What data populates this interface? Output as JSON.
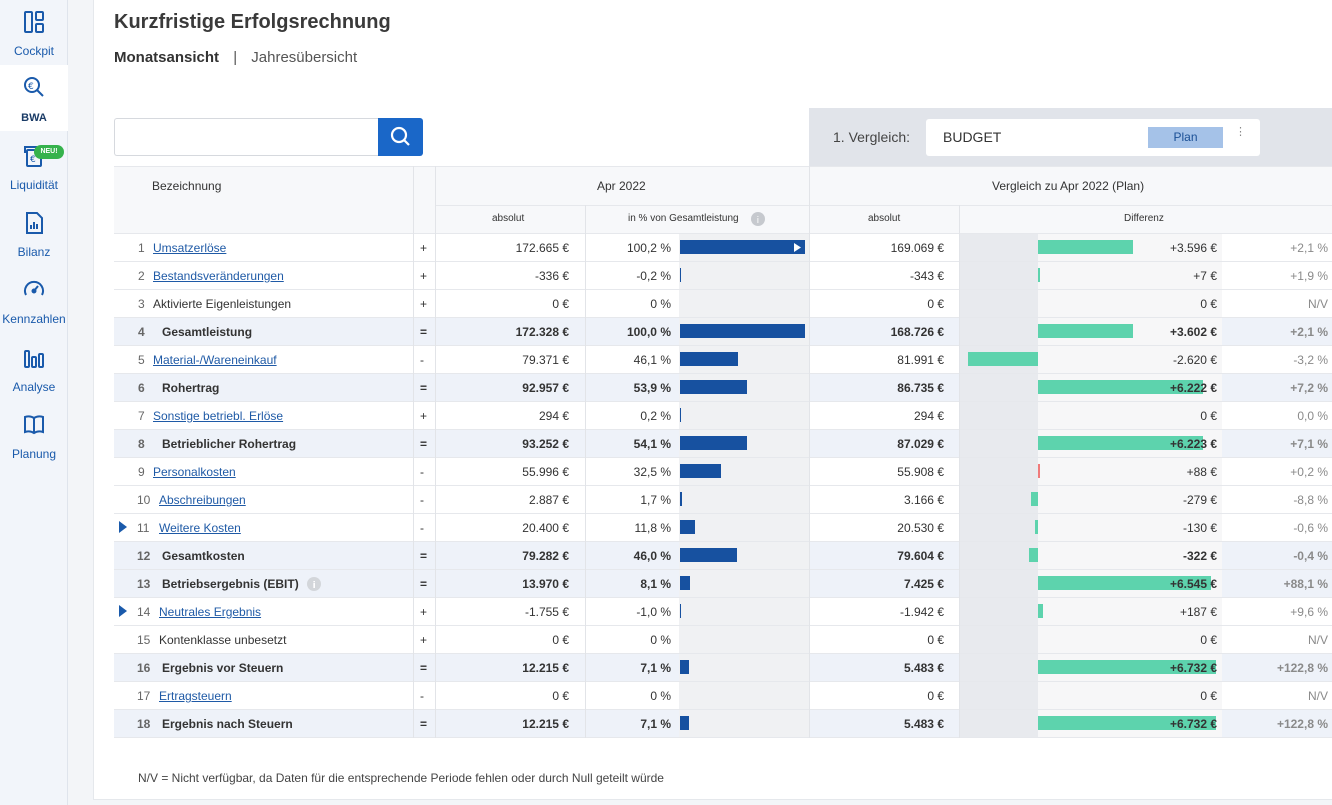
{
  "nav": [
    {
      "id": "cockpit",
      "label": "Cockpit",
      "icon": "dashboard-icon"
    },
    {
      "id": "bwa",
      "label": "BWA",
      "icon": "euro-search-icon",
      "active": true
    },
    {
      "id": "liquiditaet",
      "label": "Liquidität",
      "icon": "wallet-icon",
      "badge": "NEU!"
    },
    {
      "id": "bilanz",
      "label": "Bilanz",
      "icon": "document-chart-icon"
    },
    {
      "id": "kennzahlen",
      "label": "Kennzahlen",
      "icon": "gauge-icon"
    },
    {
      "id": "analyse",
      "label": "Analyse",
      "icon": "bar-chart-icon"
    },
    {
      "id": "planung",
      "label": "Planung",
      "icon": "book-icon"
    }
  ],
  "page": {
    "title": "Kurzfristige Erfolgsrechnung",
    "tab_month": "Monatsansicht",
    "tab_sep": "|",
    "tab_year": "Jahresübersicht"
  },
  "search": {
    "placeholder": "",
    "value": ""
  },
  "compare": {
    "label": "1. Vergleich:",
    "value": "BUDGET",
    "badge": "Plan",
    "more": "⋮"
  },
  "table": {
    "h_name": "Bezeichnung",
    "h_period": "Apr 2022",
    "h_compare": "Vergleich zu Apr 2022 (Plan)",
    "h_abs": "absolut",
    "h_pct": "in % von Gesamtleistung",
    "h_abs2": "absolut",
    "h_diff": "Differenz",
    "rows": [
      {
        "no": "1",
        "name": "Umsatzerlöse",
        "link": true,
        "op": "+",
        "abs": "172.665 €",
        "pct": "100,2 %",
        "share": 100.2,
        "plan": "169.069 €",
        "diff": "+3.596 €",
        "diffv": 3596,
        "dpct": "+2,1 %"
      },
      {
        "no": "2",
        "name": "Bestandsveränderungen",
        "link": true,
        "op": "+",
        "abs": "-336 €",
        "pct": "-0,2 %",
        "share": 0.2,
        "plan": "-343 €",
        "diff": "+7 €",
        "diffv": 7,
        "dpct": "+1,9 %"
      },
      {
        "no": "3",
        "name": "Aktivierte Eigenleistungen",
        "link": false,
        "op": "+",
        "abs": "0 €",
        "pct": "0 %",
        "share": 0,
        "plan": "0 €",
        "diff": "0 €",
        "diffv": 0,
        "dpct": "N/V"
      },
      {
        "no": "4",
        "name": "Gesamtleistung",
        "bold": true,
        "op": "=",
        "abs": "172.328 €",
        "pct": "100,0 %",
        "share": 100,
        "plan": "168.726 €",
        "diff": "+3.602 €",
        "diffv": 3602,
        "dpct": "+2,1 %"
      },
      {
        "no": "5",
        "name": "Material-/Wareneinkauf",
        "link": true,
        "op": "-",
        "abs": "79.371 €",
        "pct": "46,1 %",
        "share": 46.1,
        "plan": "81.991 €",
        "diff": "-2.620 €",
        "diffv": -2620,
        "dpct": "-3,2 %"
      },
      {
        "no": "6",
        "name": "Rohertrag",
        "bold": true,
        "op": "=",
        "abs": "92.957 €",
        "pct": "53,9 %",
        "share": 53.9,
        "plan": "86.735 €",
        "diff": "+6.222 €",
        "diffv": 6222,
        "dpct": "+7,2 %"
      },
      {
        "no": "7",
        "name": "Sonstige betriebl. Erlöse",
        "link": true,
        "op": "+",
        "abs": "294 €",
        "pct": "0,2 %",
        "share": 0.2,
        "plan": "294 €",
        "diff": "0 €",
        "diffv": 0,
        "dpct": "0,0 %"
      },
      {
        "no": "8",
        "name": "Betrieblicher Rohertrag",
        "bold": true,
        "op": "=",
        "abs": "93.252 €",
        "pct": "54,1 %",
        "share": 54.1,
        "plan": "87.029 €",
        "diff": "+6.223 €",
        "diffv": 6223,
        "dpct": "+7,1 %"
      },
      {
        "no": "9",
        "name": "Personalkosten",
        "link": true,
        "op": "-",
        "abs": "55.996 €",
        "pct": "32,5 %",
        "share": 32.5,
        "plan": "55.908 €",
        "diff": "+88 €",
        "diffv": 88,
        "dpct": "+0,2 %",
        "neg": true
      },
      {
        "no": "10",
        "name": "Abschreibungen",
        "link": true,
        "op": "-",
        "abs": "2.887 €",
        "pct": "1,7 %",
        "share": 1.7,
        "plan": "3.166 €",
        "diff": "-279 €",
        "diffv": -279,
        "dpct": "-8,8 %"
      },
      {
        "no": "11",
        "name": "Weitere Kosten",
        "link": true,
        "expand": true,
        "op": "-",
        "abs": "20.400 €",
        "pct": "11,8 %",
        "share": 11.8,
        "plan": "20.530 €",
        "diff": "-130 €",
        "diffv": -130,
        "dpct": "-0,6 %"
      },
      {
        "no": "12",
        "name": "Gesamtkosten",
        "bold": true,
        "op": "=",
        "abs": "79.282 €",
        "pct": "46,0 %",
        "share": 46,
        "plan": "79.604 €",
        "diff": "-322 €",
        "diffv": -322,
        "dpct": "-0,4 %"
      },
      {
        "no": "13",
        "name": "Betriebsergebnis (EBIT)",
        "bold": true,
        "info": true,
        "op": "=",
        "abs": "13.970 €",
        "pct": "8,1 %",
        "share": 8.1,
        "plan": "7.425 €",
        "diff": "+6.545 €",
        "diffv": 6545,
        "dpct": "+88,1 %"
      },
      {
        "no": "14",
        "name": "Neutrales Ergebnis",
        "link": true,
        "expand": true,
        "op": "+",
        "abs": "-1.755 €",
        "pct": "-1,0 %",
        "share": 1,
        "plan": "-1.942 €",
        "diff": "+187 €",
        "diffv": 187,
        "dpct": "+9,6 %"
      },
      {
        "no": "15",
        "name": "Kontenklasse unbesetzt",
        "link": false,
        "op": "+",
        "abs": "0 €",
        "pct": "0 %",
        "share": 0,
        "plan": "0 €",
        "diff": "0 €",
        "diffv": 0,
        "dpct": "N/V"
      },
      {
        "no": "16",
        "name": "Ergebnis vor Steuern",
        "bold": true,
        "op": "=",
        "abs": "12.215 €",
        "pct": "7,1 %",
        "share": 7.1,
        "plan": "5.483 €",
        "diff": "+6.732 €",
        "diffv": 6732,
        "dpct": "+122,8 %"
      },
      {
        "no": "17",
        "name": "Ertragsteuern",
        "link": true,
        "op": "-",
        "abs": "0 €",
        "pct": "0 %",
        "share": 0,
        "plan": "0 €",
        "diff": "0 €",
        "diffv": 0,
        "dpct": "N/V"
      },
      {
        "no": "18",
        "name": "Ergebnis nach Steuern",
        "bold": true,
        "op": "=",
        "abs": "12.215 €",
        "pct": "7,1 %",
        "share": 7.1,
        "plan": "5.483 €",
        "diff": "+6.732 €",
        "diffv": 6732,
        "dpct": "+122,8 %"
      }
    ]
  },
  "footer": "N/V = Nicht verfügbar, da Daten für die entsprechende Periode fehlen oder durch Null geteilt würde",
  "colors": {
    "accent": "#1a67c8",
    "bar": "#1751a0",
    "diff_pos": "#5dd3ad",
    "diff_neg": "#f07a7a"
  }
}
